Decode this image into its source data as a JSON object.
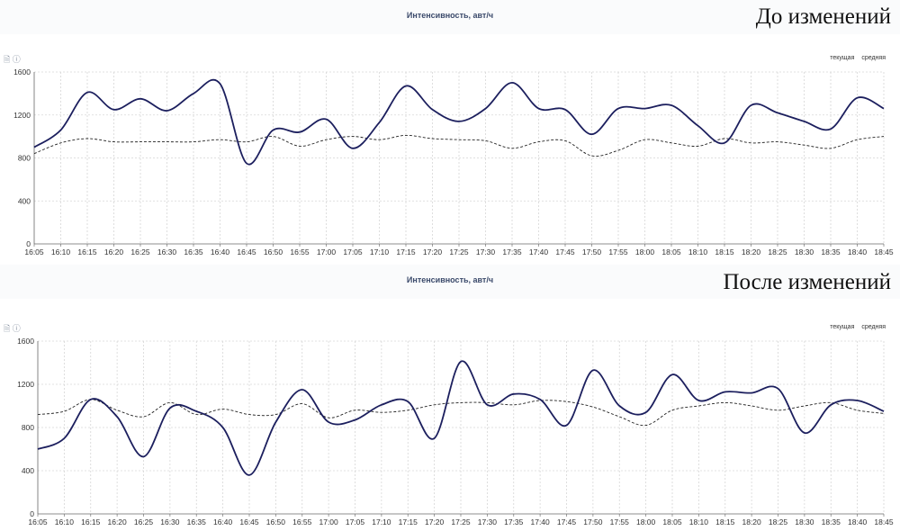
{
  "charts": [
    {
      "caption": "До изменений",
      "title": "Интенсивность, авт/ч",
      "legend": [
        "текущая",
        "средняя"
      ]
    },
    {
      "caption": "После изменений",
      "title": "Интенсивность, авт/ч",
      "legend": [
        "текущая",
        "средняя"
      ]
    }
  ],
  "chart_data": [
    {
      "type": "line",
      "title": "Интенсивность, авт/ч",
      "ylim": [
        0,
        1600
      ],
      "yticks": [
        0,
        400,
        800,
        1200,
        1600
      ],
      "x": [
        "16:05",
        "16:10",
        "16:15",
        "16:20",
        "16:25",
        "16:30",
        "16:35",
        "16:40",
        "16:45",
        "16:50",
        "16:55",
        "17:00",
        "17:05",
        "17:10",
        "17:15",
        "17:20",
        "17:25",
        "17:30",
        "17:35",
        "17:40",
        "17:45",
        "17:50",
        "17:55",
        "18:00",
        "18:05",
        "18:10",
        "18:15",
        "18:20",
        "18:25",
        "18:30",
        "18:35",
        "18:40",
        "18:45"
      ],
      "grid": true,
      "legend_position": "top-right",
      "series": [
        {
          "name": "текущая",
          "color": "#1c1f5e",
          "style": "solid",
          "values": [
            900,
            1060,
            1410,
            1250,
            1350,
            1240,
            1400,
            1490,
            750,
            1060,
            1040,
            1160,
            890,
            1130,
            1470,
            1250,
            1140,
            1260,
            1500,
            1260,
            1250,
            1020,
            1260,
            1260,
            1290,
            1100,
            940,
            1290,
            1220,
            1140,
            1070,
            1360,
            1260
          ]
        },
        {
          "name": "средняя",
          "color": "#222222",
          "style": "dashed",
          "values": [
            840,
            940,
            980,
            950,
            950,
            950,
            950,
            970,
            950,
            1000,
            910,
            970,
            1000,
            970,
            1010,
            980,
            970,
            960,
            890,
            950,
            960,
            820,
            870,
            970,
            940,
            910,
            980,
            940,
            950,
            920,
            890,
            970,
            1000
          ]
        }
      ]
    },
    {
      "type": "line",
      "title": "Интенсивность, авт/ч",
      "ylim": [
        0,
        1600
      ],
      "yticks": [
        0,
        400,
        800,
        1200,
        1600
      ],
      "x": [
        "16:05",
        "16:10",
        "16:15",
        "16:20",
        "16:25",
        "16:30",
        "16:35",
        "16:40",
        "16:45",
        "16:50",
        "16:55",
        "17:00",
        "17:05",
        "17:10",
        "17:15",
        "17:20",
        "17:25",
        "17:30",
        "17:35",
        "17:40",
        "17:45",
        "17:50",
        "17:55",
        "18:00",
        "18:05",
        "18:10",
        "18:15",
        "18:20",
        "18:25",
        "18:30",
        "18:35",
        "18:40",
        "18:45"
      ],
      "grid": true,
      "legend_position": "top-right",
      "series": [
        {
          "name": "текущая",
          "color": "#1c1f5e",
          "style": "solid",
          "values": [
            600,
            700,
            1060,
            900,
            530,
            980,
            950,
            800,
            360,
            850,
            1150,
            850,
            870,
            1010,
            1040,
            700,
            1410,
            1010,
            1110,
            1060,
            820,
            1330,
            1000,
            940,
            1290,
            1050,
            1130,
            1120,
            1160,
            750,
            1010,
            1050,
            950
          ]
        },
        {
          "name": "средняя",
          "color": "#222222",
          "style": "dashed",
          "values": [
            920,
            950,
            1060,
            960,
            900,
            1030,
            920,
            970,
            920,
            920,
            1020,
            890,
            960,
            940,
            960,
            1010,
            1030,
            1030,
            1010,
            1050,
            1040,
            990,
            900,
            820,
            960,
            1000,
            1030,
            1000,
            960,
            1000,
            1030,
            960,
            930
          ]
        }
      ]
    }
  ]
}
